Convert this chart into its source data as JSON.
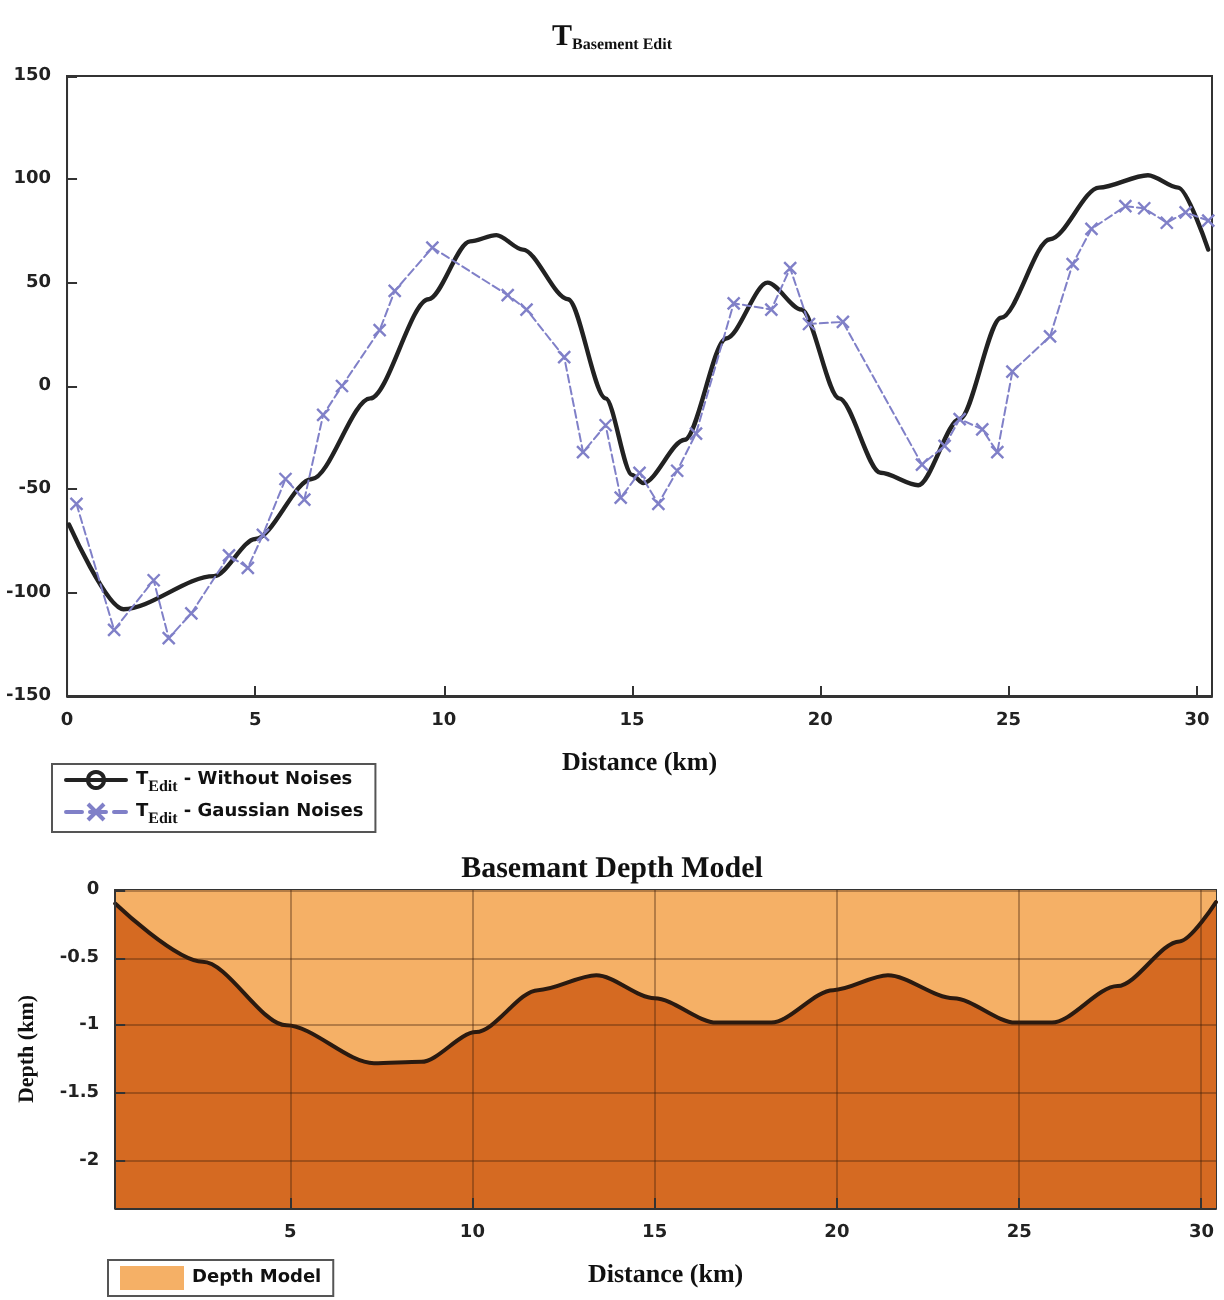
{
  "chart_data": [
    {
      "type": "line",
      "title": "T$_{Basement Edit}$",
      "xlabel": "Distance (km)",
      "xlim": [
        0,
        30.4
      ],
      "xticks": [
        0,
        5,
        10,
        15,
        20,
        25,
        30
      ],
      "ylim": [
        -150,
        150
      ],
      "yticks": [
        -150,
        -100,
        -50,
        0,
        50,
        100,
        150
      ],
      "grid": false,
      "legend": "bottom left",
      "marker": "none",
      "line_style": "solid",
      "series": [
        {
          "name": "T$_{Edit}$ - Without Noises",
          "color": "#222222",
          "x": [
            0.05,
            1.5,
            3.9,
            5,
            6.5,
            8.05,
            9.6,
            10.7,
            11.4,
            12.1,
            13.3,
            14.3,
            15,
            15.3,
            16.4,
            17.5,
            18.6,
            19.5,
            20.5,
            21.6,
            22.6,
            23.7,
            24.8,
            26.1,
            27.4,
            28.7,
            29.5,
            30.3
          ],
          "values": [
            -67,
            -108,
            -92,
            -74,
            -45,
            -6,
            42,
            70,
            73,
            66,
            42,
            -6,
            -43,
            -47,
            -26,
            23,
            50,
            37,
            -6,
            -42,
            -48,
            -16,
            33,
            71,
            96,
            102,
            96,
            66
          ]
        },
        {
          "name": "T$_{Edit}$ - Gaussian Noises",
          "color": "#8080c8",
          "marker": "cross",
          "line_style": "dashed",
          "x": [
            0.25,
            1.25,
            2.3,
            2.7,
            3.3,
            4.3,
            4.8,
            5.2,
            5.8,
            6.3,
            6.8,
            7.3,
            8.3,
            8.7,
            9.7,
            11.7,
            12.2,
            13.2,
            13.7,
            14.3,
            14.7,
            15.2,
            15.7,
            16.2,
            16.7,
            17.7,
            18.7,
            19.2,
            19.7,
            20.6,
            22.7,
            23.3,
            23.7,
            24.3,
            24.7,
            25.1,
            26.1,
            26.7,
            27.2,
            28.1,
            28.6,
            29.2,
            29.7,
            30.3
          ],
          "values": [
            -57,
            -118,
            -94,
            -122,
            -110,
            -82,
            -88,
            -72,
            -45,
            -55,
            -14,
            0,
            27,
            46,
            67,
            44,
            37,
            14,
            -32,
            -19,
            -54,
            -42,
            -57,
            -41,
            -23,
            40,
            37,
            57,
            30,
            31,
            -38,
            -29,
            -16,
            -21,
            -32,
            7,
            24,
            59,
            76,
            87,
            86,
            79,
            84,
            80
          ]
        }
      ]
    },
    {
      "type": "area",
      "title": "Basemant Depth Model",
      "xlabel": "Distance (km)",
      "ylabel": "Depth (km)",
      "xlim": [
        0.2,
        30.4
      ],
      "xticks": [
        5,
        10,
        15,
        20,
        25,
        30
      ],
      "ylim": [
        -2.35,
        0
      ],
      "yticks": [
        -2,
        -1.5,
        -1,
        -0.5,
        0
      ],
      "grid": true,
      "legend": "bottom left",
      "bands": [
        {
          "axis": "y",
          "from": -2.35,
          "to": 0,
          "color": "#d56a22"
        }
      ],
      "series": [
        {
          "name": "Depth Model",
          "color": "#f5b066",
          "x": [
            0.2,
            2.6,
            4.9,
            7.3,
            8.6,
            10.1,
            11.8,
            13.4,
            15,
            16.7,
            18.2,
            19.9,
            21.4,
            23.2,
            24.9,
            25.9,
            27.7,
            29.4,
            30.4
          ],
          "values": [
            -0.1,
            -0.53,
            -1,
            -1.28,
            -1.27,
            -1.05,
            -0.74,
            -0.63,
            -0.8,
            -0.98,
            -0.98,
            -0.74,
            -0.63,
            -0.8,
            -0.98,
            -0.98,
            -0.71,
            -0.38,
            -0.09
          ]
        }
      ]
    }
  ]
}
